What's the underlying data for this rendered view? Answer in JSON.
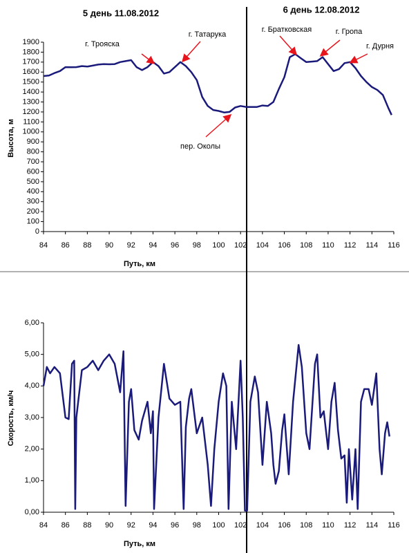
{
  "chart_data": [
    {
      "type": "line",
      "titles": [
        "5 день 11.08.2012",
        "6 день 12.08.2012"
      ],
      "ylabel": "Высота, м",
      "xlabel": "Путь, км",
      "annotations": [
        {
          "text": "г. Трояска"
        },
        {
          "text": "г. Татарука"
        },
        {
          "text": "пер. Околы"
        },
        {
          "text": "г. Братковская"
        },
        {
          "text": "г. Гропа"
        },
        {
          "text": "г. Дурня"
        }
      ],
      "xlim": [
        84,
        116
      ],
      "xticks": [
        84,
        86,
        88,
        90,
        92,
        94,
        96,
        98,
        100,
        102,
        104,
        106,
        108,
        110,
        112,
        114,
        116
      ],
      "ylim": [
        0,
        1900
      ],
      "yticks": [
        0,
        100,
        200,
        300,
        400,
        500,
        600,
        700,
        800,
        900,
        1000,
        1100,
        1200,
        1300,
        1400,
        1500,
        1600,
        1700,
        1800,
        1900
      ],
      "x": [
        84,
        84.5,
        85,
        85.5,
        86,
        86.5,
        87,
        87.5,
        88,
        88.5,
        89,
        89.5,
        90,
        90.5,
        91,
        91.5,
        92,
        92.5,
        93,
        93.5,
        94,
        94.5,
        95,
        95.5,
        96,
        96.5,
        97,
        97.5,
        98,
        98.5,
        99,
        99.5,
        100,
        100.5,
        101,
        101.5,
        102,
        102.5,
        103,
        103.5,
        104,
        104.5,
        105,
        105.5,
        106,
        106.5,
        107,
        107.5,
        108,
        108.5,
        109,
        109.5,
        110,
        110.5,
        111,
        111.5,
        112,
        112.5,
        113,
        113.5,
        114,
        114.5,
        115,
        115.5,
        115.8
      ],
      "series": [
        {
          "color": "#1a1a7a",
          "values": [
            1560,
            1565,
            1590,
            1610,
            1650,
            1648,
            1650,
            1660,
            1655,
            1665,
            1675,
            1680,
            1678,
            1680,
            1700,
            1710,
            1720,
            1650,
            1620,
            1650,
            1700,
            1660,
            1585,
            1600,
            1650,
            1700,
            1660,
            1600,
            1520,
            1350,
            1260,
            1220,
            1210,
            1195,
            1200,
            1245,
            1260,
            1250,
            1250,
            1250,
            1265,
            1260,
            1300,
            1430,
            1550,
            1750,
            1780,
            1740,
            1700,
            1705,
            1710,
            1750,
            1680,
            1610,
            1630,
            1690,
            1700,
            1640,
            1560,
            1500,
            1450,
            1420,
            1370,
            1240,
            1170
          ]
        }
      ]
    },
    {
      "type": "line",
      "ylabel": "Скорость, км/ч",
      "xlabel": "Путь, км",
      "xlim": [
        84,
        116
      ],
      "xticks": [
        84,
        86,
        88,
        90,
        92,
        94,
        96,
        98,
        100,
        102,
        104,
        106,
        108,
        110,
        112,
        114,
        116
      ],
      "ylim": [
        0,
        6
      ],
      "yticks": [
        {
          "value": 0,
          "label": "0,00"
        },
        {
          "value": 1,
          "label": "1,00"
        },
        {
          "value": 2,
          "label": "2,00"
        },
        {
          "value": 3,
          "label": "3,00"
        },
        {
          "value": 4,
          "label": "4,00"
        },
        {
          "value": 5,
          "label": "5,00"
        },
        {
          "value": 6,
          "label": "6,00"
        }
      ],
      "x": [
        84,
        84.3,
        84.6,
        85,
        85.5,
        86,
        86.3,
        86.6,
        86.8,
        86.9,
        87,
        87.5,
        88,
        88.5,
        89,
        89.5,
        90,
        90.5,
        91,
        91.3,
        91.5,
        91.8,
        92,
        92.3,
        92.7,
        93,
        93.5,
        93.8,
        94,
        94.1,
        94.5,
        95,
        95.5,
        96,
        96.5,
        96.8,
        97,
        97.3,
        97.5,
        98,
        98.5,
        99,
        99.3,
        99.6,
        100,
        100.4,
        100.7,
        100.9,
        101.2,
        101.6,
        102,
        102.2,
        102.4,
        102.6,
        102.9,
        103.3,
        103.6,
        104,
        104.4,
        104.8,
        105,
        105.2,
        105.5,
        105.8,
        106,
        106.4,
        106.8,
        107.3,
        107.6,
        108,
        108.3,
        108.8,
        109,
        109.3,
        109.6,
        110,
        110.3,
        110.6,
        110.9,
        111.2,
        111.5,
        111.7,
        111.9,
        112.2,
        112.5,
        112.7,
        113,
        113.3,
        113.7,
        114,
        114.4,
        114.7,
        114.9,
        115.2,
        115.4,
        115.6
      ],
      "series": [
        {
          "color": "#1a1a7a",
          "values": [
            4.0,
            4.6,
            4.4,
            4.6,
            4.4,
            3.0,
            2.95,
            4.7,
            4.8,
            0.1,
            3.0,
            4.5,
            4.6,
            4.8,
            4.5,
            4.8,
            5.0,
            4.7,
            3.8,
            5.1,
            0.2,
            3.5,
            3.9,
            2.6,
            2.3,
            2.9,
            3.5,
            2.5,
            3.2,
            0.1,
            3.0,
            4.7,
            3.6,
            3.4,
            3.5,
            0.1,
            2.7,
            3.6,
            3.9,
            2.5,
            3.0,
            1.5,
            0.2,
            2.0,
            3.5,
            4.4,
            4.0,
            0.1,
            3.5,
            2.0,
            4.8,
            3.0,
            0.05,
            0.05,
            3.5,
            4.3,
            3.8,
            1.5,
            3.5,
            2.5,
            1.5,
            0.9,
            1.3,
            2.6,
            3.1,
            1.2,
            3.5,
            5.3,
            4.6,
            2.5,
            2.0,
            4.7,
            5.0,
            3.0,
            3.2,
            2.0,
            3.5,
            4.1,
            2.6,
            1.7,
            1.8,
            0.3,
            2.0,
            0.4,
            2.0,
            0.1,
            3.5,
            3.9,
            3.9,
            3.4,
            4.4,
            2.0,
            1.2,
            2.5,
            2.85,
            2.4
          ]
        }
      ]
    }
  ]
}
